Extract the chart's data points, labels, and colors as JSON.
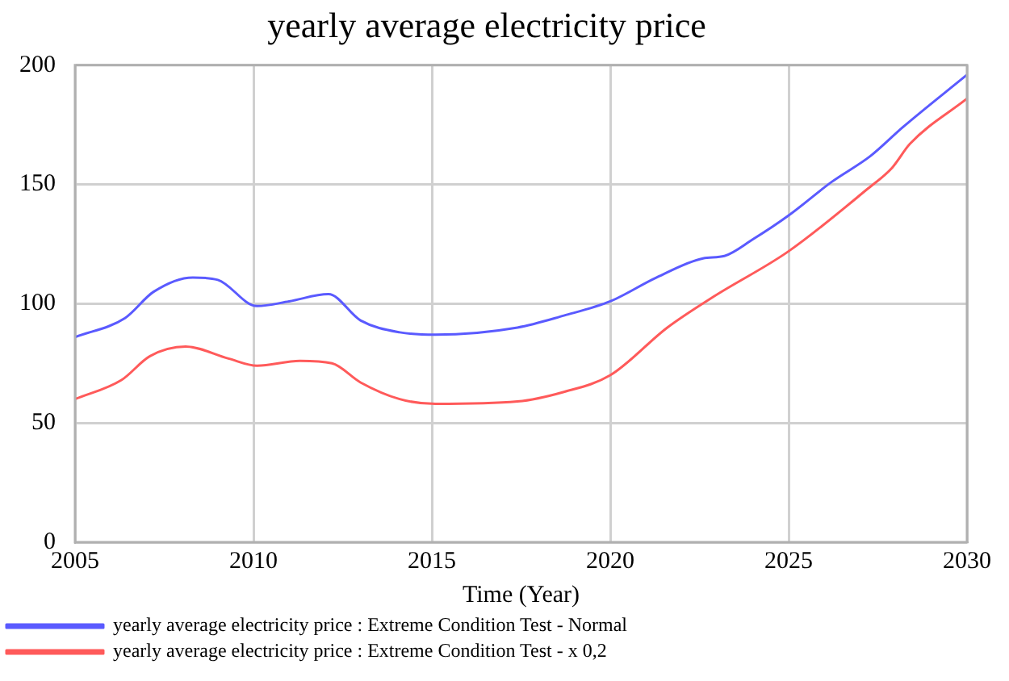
{
  "chart_data": {
    "type": "line",
    "title": "yearly average electricity price",
    "xlabel": "Time (Year)",
    "xlim": [
      2005,
      2030
    ],
    "xticks": [
      2005,
      2010,
      2015,
      2020,
      2025,
      2030
    ],
    "ylim": [
      0,
      200
    ],
    "yticks": [
      0,
      50,
      100,
      150,
      200
    ],
    "grid": true,
    "legend": "bottom",
    "marker": "none",
    "line_style": "solid",
    "series": [
      {
        "name": "yearly average electricity price : Extreme Condition Test - Normal",
        "color": "#5a5aff",
        "x": [
          2005,
          2006.4,
          2007.2,
          2008.3,
          2009,
          2010.1,
          2011,
          2012.1,
          2013,
          2014.1,
          2015.1,
          2017.4,
          2018.7,
          2020,
          2021.3,
          2022.6,
          2023.2,
          2024,
          2025,
          2026.2,
          2027.3,
          2028.2,
          2030
        ],
        "values": [
          86,
          94,
          105,
          111,
          110,
          99,
          101,
          104,
          93,
          88,
          87,
          90,
          95,
          101,
          111,
          119,
          120,
          127,
          137,
          151,
          162,
          174,
          196
        ]
      },
      {
        "name": "yearly average electricity price : Extreme Condition Test - x 0,2",
        "color": "#ff5a5a",
        "x": [
          2005,
          2006.3,
          2007.1,
          2008.1,
          2009.3,
          2010.1,
          2011.3,
          2012.2,
          2013,
          2014.1,
          2015.1,
          2017.4,
          2018.7,
          2020,
          2021.6,
          2022.9,
          2025,
          2027.2,
          2027.9,
          2028.4,
          2030
        ],
        "values": [
          60,
          68,
          78,
          82,
          77,
          74,
          76,
          75,
          67,
          60,
          58,
          59,
          63,
          70,
          90,
          103,
          122,
          148,
          157,
          167,
          186
        ]
      }
    ]
  }
}
